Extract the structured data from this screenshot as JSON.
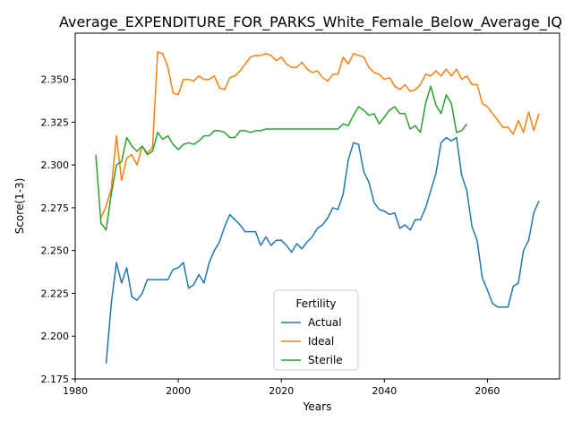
{
  "chart_data": {
    "type": "line",
    "title": "Average_EXPENDITURE_FOR_PARKS_White_Female_Below_Average_IQ",
    "xlabel": "Years",
    "ylabel": "Score(1-3)",
    "xlim": [
      1980,
      2074
    ],
    "ylim": [
      2.175,
      2.377
    ],
    "xticks": [
      1980,
      2000,
      2020,
      2040,
      2060
    ],
    "yticks": [
      2.175,
      2.2,
      2.225,
      2.25,
      2.275,
      2.3,
      2.325,
      2.35
    ],
    "grid": false,
    "legend": {
      "title": "Fertility",
      "placement": "lower-center"
    },
    "series": [
      {
        "name": "Actual",
        "color": "#1f77b4",
        "x": [
          1986,
          1987,
          1988,
          1989,
          1990,
          1991,
          1992,
          1993,
          1994,
          1995,
          1996,
          1997,
          1998,
          1999,
          2000,
          2001,
          2002,
          2003,
          2004,
          2005,
          2006,
          2007,
          2008,
          2009,
          2010,
          2011,
          2012,
          2013,
          2014,
          2015,
          2016,
          2017,
          2018,
          2019,
          2020,
          2021,
          2022,
          2023,
          2024,
          2025,
          2026,
          2027,
          2028,
          2029,
          2030,
          2031,
          2032,
          2033,
          2034,
          2035,
          2036,
          2037,
          2038,
          2039,
          2040,
          2041,
          2042,
          2043,
          2044,
          2045,
          2046,
          2047,
          2048,
          2049,
          2050,
          2051,
          2052,
          2053,
          2054,
          2055,
          2056,
          2057,
          2058,
          2059,
          2060,
          2061,
          2062,
          2063,
          2064,
          2065,
          2066,
          2067,
          2068,
          2069,
          2070
        ],
        "values": [
          2.184,
          2.219,
          2.243,
          2.231,
          2.24,
          2.223,
          2.221,
          2.225,
          2.233,
          2.233,
          2.233,
          2.233,
          2.233,
          2.239,
          2.24,
          2.243,
          2.228,
          2.23,
          2.236,
          2.231,
          2.243,
          2.25,
          2.255,
          2.264,
          2.271,
          2.268,
          2.265,
          2.261,
          2.261,
          2.261,
          2.253,
          2.258,
          2.253,
          2.256,
          2.256,
          2.253,
          2.249,
          2.254,
          2.251,
          2.255,
          2.258,
          2.263,
          2.265,
          2.269,
          2.275,
          2.274,
          2.283,
          2.303,
          2.313,
          2.312,
          2.296,
          2.29,
          2.278,
          2.274,
          2.273,
          2.271,
          2.272,
          2.263,
          2.265,
          2.262,
          2.268,
          2.268,
          2.275,
          2.285,
          2.295,
          2.313,
          2.316,
          2.314,
          2.316,
          2.294,
          2.285,
          2.264,
          2.256,
          2.234,
          2.227,
          2.219,
          2.217,
          2.217,
          2.217,
          2.229,
          2.231,
          2.25,
          2.256,
          2.272,
          2.279
        ]
      },
      {
        "name": "Ideal",
        "color": "#ff7f0e",
        "x": [
          1985,
          1986,
          1987,
          1988,
          1989,
          1990,
          1991,
          1992,
          1993,
          1994,
          1995,
          1996,
          1997,
          1998,
          1999,
          2000,
          2001,
          2002,
          2003,
          2004,
          2005,
          2006,
          2007,
          2008,
          2009,
          2010,
          2011,
          2012,
          2013,
          2014,
          2015,
          2016,
          2017,
          2018,
          2019,
          2020,
          2021,
          2022,
          2023,
          2024,
          2025,
          2026,
          2027,
          2028,
          2029,
          2030,
          2031,
          2032,
          2033,
          2034,
          2035,
          2036,
          2037,
          2038,
          2039,
          2040,
          2041,
          2042,
          2043,
          2044,
          2045,
          2046,
          2047,
          2048,
          2049,
          2050,
          2051,
          2052,
          2053,
          2054,
          2055,
          2056,
          2057,
          2058,
          2059,
          2060,
          2061,
          2062,
          2063,
          2064,
          2065,
          2066,
          2067,
          2068,
          2069,
          2070
        ],
        "values": [
          2.269,
          2.276,
          2.286,
          2.317,
          2.291,
          2.304,
          2.306,
          2.3,
          2.311,
          2.307,
          2.31,
          2.366,
          2.365,
          2.357,
          2.342,
          2.341,
          2.35,
          2.35,
          2.349,
          2.352,
          2.35,
          2.35,
          2.352,
          2.345,
          2.344,
          2.351,
          2.352,
          2.355,
          2.359,
          2.363,
          2.364,
          2.364,
          2.365,
          2.364,
          2.361,
          2.363,
          2.359,
          2.357,
          2.357,
          2.36,
          2.356,
          2.354,
          2.355,
          2.351,
          2.349,
          2.353,
          2.353,
          2.363,
          2.359,
          2.365,
          2.364,
          2.363,
          2.357,
          2.354,
          2.353,
          2.35,
          2.351,
          2.346,
          2.344,
          2.347,
          2.343,
          2.344,
          2.347,
          2.353,
          2.352,
          2.355,
          2.352,
          2.356,
          2.352,
          2.356,
          2.35,
          2.352,
          2.347,
          2.347,
          2.336,
          2.334,
          2.33,
          2.326,
          2.322,
          2.322,
          2.318,
          2.326,
          2.319,
          2.331,
          2.32,
          2.33
        ]
      },
      {
        "name": "Sterile",
        "color": "#2ca02c",
        "x": [
          1984,
          1985,
          1986,
          1987,
          1988,
          1989,
          1990,
          1991,
          1992,
          1993,
          1994,
          1995,
          1996,
          1997,
          1998,
          1999,
          2000,
          2001,
          2002,
          2003,
          2004,
          2005,
          2006,
          2007,
          2008,
          2009,
          2010,
          2011,
          2012,
          2013,
          2014,
          2015,
          2016,
          2017,
          2018,
          2019,
          2020,
          2021,
          2022,
          2023,
          2024,
          2025,
          2026,
          2027,
          2028,
          2029,
          2030,
          2031,
          2032,
          2033,
          2034,
          2035,
          2036,
          2037,
          2038,
          2039,
          2040,
          2041,
          2042,
          2043,
          2044,
          2045,
          2046,
          2047,
          2048,
          2049,
          2050,
          2051,
          2052,
          2053,
          2054,
          2055,
          2056
        ],
        "values": [
          2.306,
          2.266,
          2.262,
          2.283,
          2.3,
          2.302,
          2.316,
          2.311,
          2.308,
          2.311,
          2.306,
          2.308,
          2.319,
          2.315,
          2.317,
          2.312,
          2.309,
          2.312,
          2.313,
          2.312,
          2.314,
          2.317,
          2.317,
          2.32,
          2.32,
          2.319,
          2.316,
          2.316,
          2.32,
          2.32,
          2.319,
          2.32,
          2.32,
          2.321,
          2.321,
          2.321,
          2.321,
          2.321,
          2.321,
          2.321,
          2.321,
          2.321,
          2.321,
          2.321,
          2.321,
          2.321,
          2.321,
          2.321,
          2.324,
          2.323,
          2.329,
          2.334,
          2.332,
          2.329,
          2.33,
          2.324,
          2.328,
          2.332,
          2.334,
          2.33,
          2.33,
          2.321,
          2.323,
          2.319,
          2.336,
          2.346,
          2.335,
          2.33,
          2.341,
          2.336,
          2.319,
          2.32,
          2.324
        ]
      }
    ]
  }
}
